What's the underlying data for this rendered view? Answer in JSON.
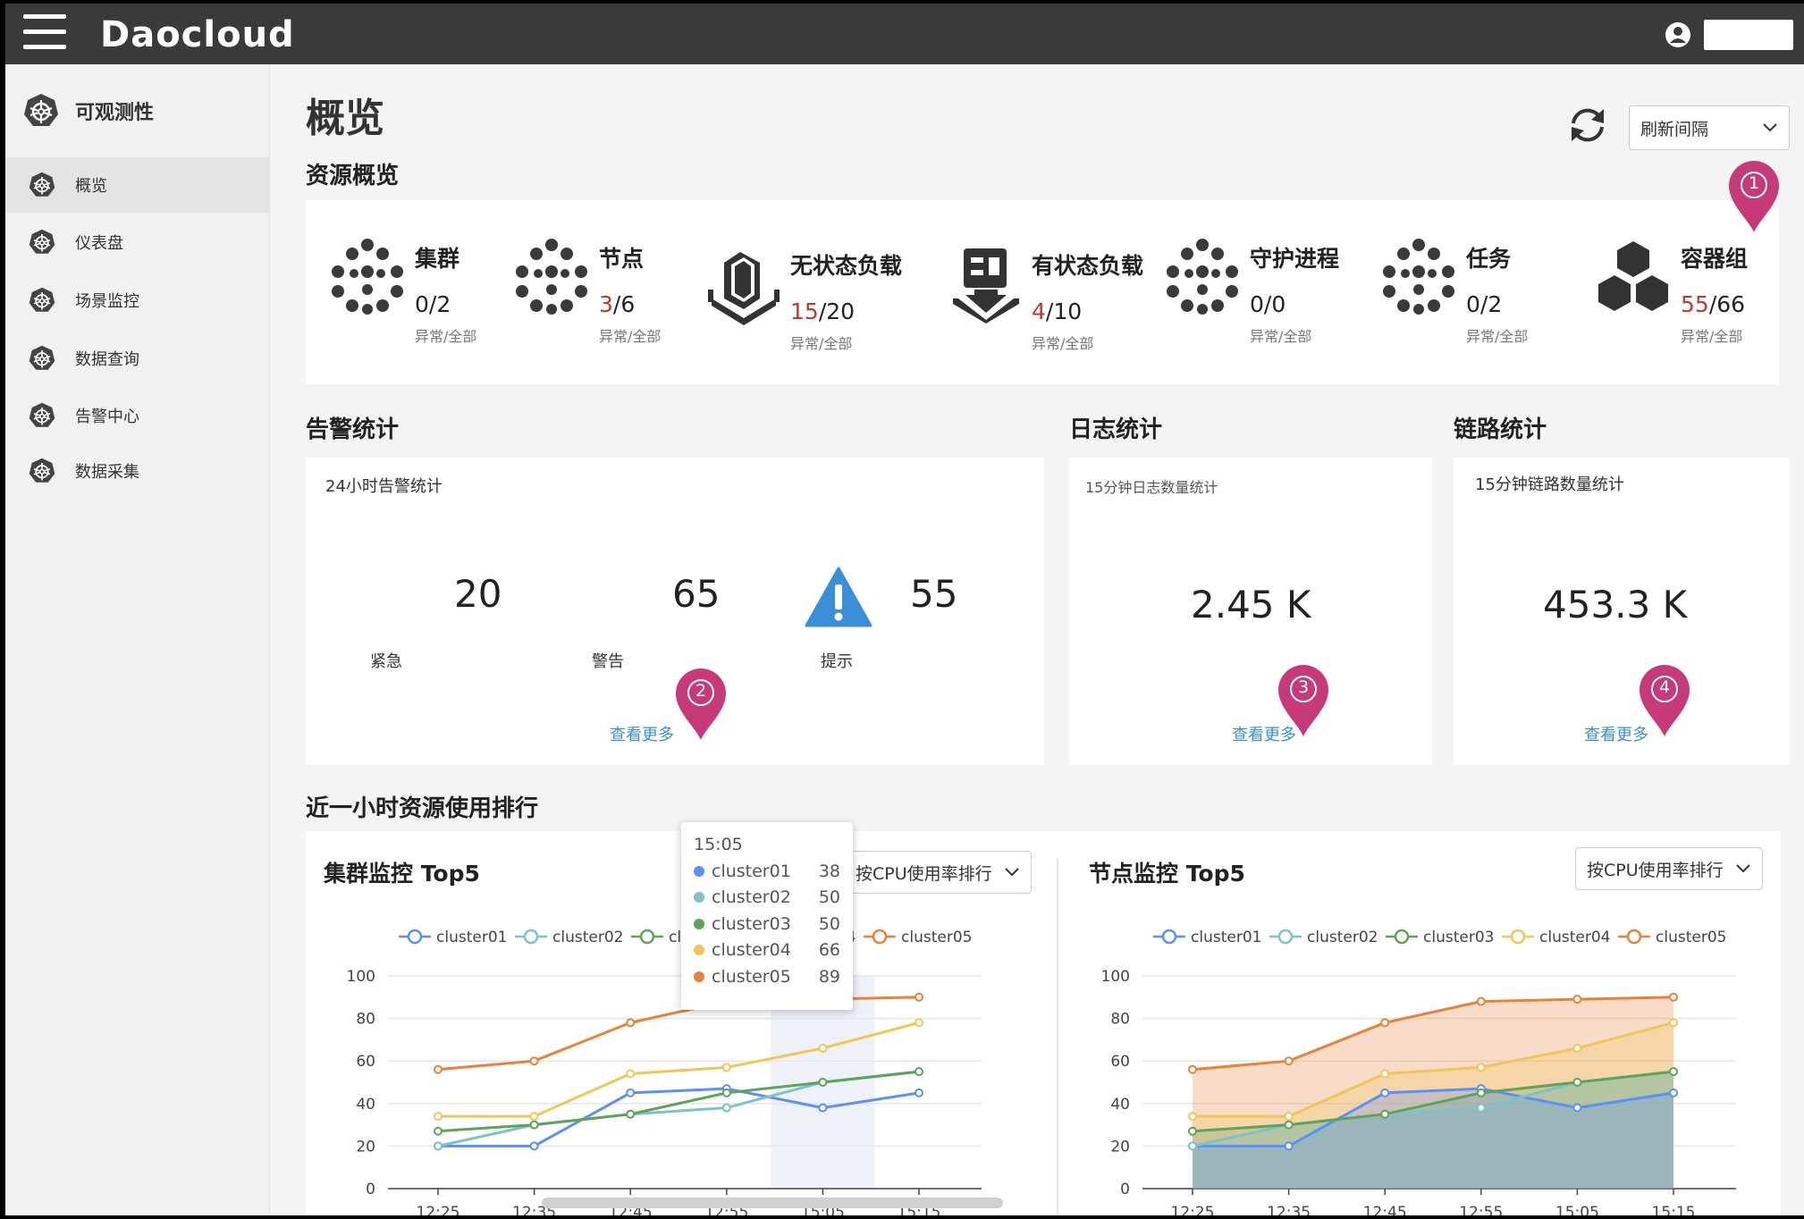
{
  "app": {
    "brand": "Daocloud"
  },
  "sidebar": {
    "header": "可观测性",
    "items": [
      {
        "label": "概览",
        "active": true
      },
      {
        "label": "仪表盘"
      },
      {
        "label": "场景监控"
      },
      {
        "label": "数据查询"
      },
      {
        "label": "告警中心"
      },
      {
        "label": "数据采集"
      }
    ]
  },
  "page": {
    "title": "概览",
    "refresh_select": "刷新间隔"
  },
  "resources": {
    "title": "资源概览",
    "items": [
      {
        "name": "集群",
        "bad": "0",
        "total": "/2",
        "sub": "异常/全部",
        "icon": "cluster-icon",
        "bad_red": false
      },
      {
        "name": "节点",
        "bad": "3",
        "total": "/6",
        "sub": "异常/全部",
        "icon": "node-icon",
        "bad_red": true
      },
      {
        "name": "无状态负载",
        "bad": "15",
        "total": "/20",
        "sub": "异常/全部",
        "icon": "stateless-workload-icon",
        "bad_red": true
      },
      {
        "name": "有状态负载",
        "bad": "4",
        "total": "/10",
        "sub": "异常/全部",
        "icon": "stateful-workload-icon",
        "bad_red": true
      },
      {
        "name": "守护进程",
        "bad": "0",
        "total": "/0",
        "sub": "异常/全部",
        "icon": "daemon-icon",
        "bad_red": false
      },
      {
        "name": "任务",
        "bad": "0",
        "total": "/2",
        "sub": "异常/全部",
        "icon": "job-icon",
        "bad_red": false
      },
      {
        "name": "容器组",
        "bad": "55",
        "total": "/66",
        "sub": "异常/全部",
        "icon": "pod-icon",
        "bad_red": true
      }
    ]
  },
  "alerts": {
    "title": "告警统计",
    "subtitle": "24小时告警统计",
    "critical": {
      "value": "20",
      "label": "紧急"
    },
    "warning": {
      "value": "65",
      "label": "警告"
    },
    "info": {
      "value": "55",
      "label": "提示"
    },
    "more": "查看更多"
  },
  "logs": {
    "title": "日志统计",
    "subtitle": "15分钟日志数量统计",
    "value": "2.45 K",
    "more": "查看更多"
  },
  "traces": {
    "title": "链路统计",
    "subtitle": "15分钟链路数量统计",
    "value": "453.3 K",
    "more": "查看更多"
  },
  "pins": [
    "1",
    "2",
    "3",
    "4"
  ],
  "ranking": {
    "title": "近一小时资源使用排行"
  },
  "colors": {
    "cluster01": "#5b8ff9",
    "cluster02": "#7ec2c8",
    "cluster03": "#5fa35a",
    "cluster04": "#f0c659",
    "cluster05": "#e8813a",
    "pin": "#c63a7a"
  },
  "cluster_chart": {
    "title": "集群监控 Top5",
    "sort_select": "按CPU使用率排行",
    "tooltip": {
      "time": "15:05",
      "rows": [
        {
          "name": "cluster01",
          "value": "38"
        },
        {
          "name": "cluster02",
          "value": "50"
        },
        {
          "name": "cluster03",
          "value": "50"
        },
        {
          "name": "cluster04",
          "value": "66"
        },
        {
          "name": "cluster05",
          "value": "89"
        }
      ]
    }
  },
  "node_chart": {
    "title": "节点监控 Top5",
    "sort_select": "按CPU使用率排行"
  },
  "chart_data": [
    {
      "type": "line",
      "title": "集群监控 Top5",
      "x": [
        "12:25",
        "12:35",
        "12:45",
        "12:55",
        "15:05",
        "15:15"
      ],
      "ylim": [
        0,
        100
      ],
      "yticks": [
        0,
        20,
        40,
        60,
        80,
        100
      ],
      "grid": true,
      "legend": "top",
      "series": [
        {
          "name": "cluster01",
          "values": [
            20,
            20,
            45,
            47,
            38,
            45
          ]
        },
        {
          "name": "cluster02",
          "values": [
            20,
            30,
            35,
            38,
            50,
            55
          ]
        },
        {
          "name": "cluster03",
          "values": [
            27,
            30,
            35,
            45,
            50,
            55
          ]
        },
        {
          "name": "cluster04",
          "values": [
            34,
            34,
            54,
            57,
            66,
            78
          ]
        },
        {
          "name": "cluster05",
          "values": [
            56,
            60,
            78,
            88,
            89,
            90
          ]
        }
      ]
    },
    {
      "type": "area",
      "title": "节点监控 Top5",
      "x": [
        "12:25",
        "12:35",
        "12:45",
        "12:55",
        "15:05",
        "15:15"
      ],
      "ylim": [
        0,
        100
      ],
      "yticks": [
        0,
        20,
        40,
        60,
        80,
        100
      ],
      "grid": true,
      "legend": "top",
      "series": [
        {
          "name": "cluster01",
          "values": [
            20,
            20,
            45,
            47,
            38,
            45
          ]
        },
        {
          "name": "cluster02",
          "values": [
            20,
            30,
            35,
            38,
            50,
            55
          ]
        },
        {
          "name": "cluster03",
          "values": [
            27,
            30,
            35,
            45,
            50,
            55
          ]
        },
        {
          "name": "cluster04",
          "values": [
            34,
            34,
            54,
            57,
            66,
            78
          ]
        },
        {
          "name": "cluster05",
          "values": [
            56,
            60,
            78,
            88,
            89,
            90
          ]
        }
      ]
    }
  ]
}
